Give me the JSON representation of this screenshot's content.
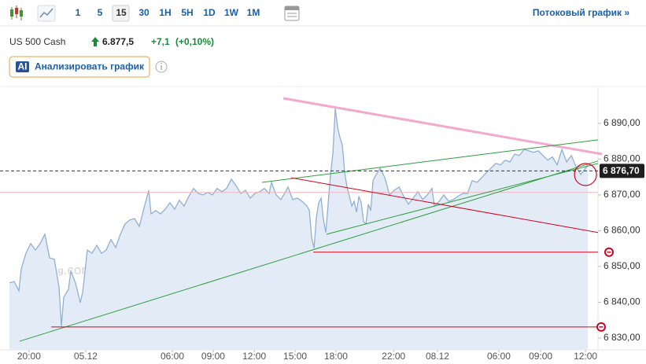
{
  "toolbar": {
    "intervals": [
      "1",
      "5",
      "15",
      "30",
      "1H",
      "5H",
      "1D",
      "1W",
      "1M"
    ],
    "selected": "15",
    "stream_link": "Потоковый график »"
  },
  "header": {
    "symbol": "US 500 Cash",
    "price": "6.877,5",
    "change": "+7,1",
    "change_pct": "(+0,10%)"
  },
  "ai_button": {
    "badge": "AI",
    "label": "Анализировать график"
  },
  "chart_data": {
    "type": "area",
    "watermark": {
      "brand": "Investing",
      "suffix": ".com"
    },
    "color": "#8fb0d3",
    "fill_color": "#e3ecf6",
    "x": [
      0,
      2,
      4,
      5,
      7,
      9,
      11,
      13,
      15,
      17,
      19,
      21,
      22,
      23,
      25,
      26,
      28,
      30,
      31,
      33,
      35,
      37,
      39,
      41,
      43,
      45,
      47,
      49,
      51,
      53,
      55,
      57,
      59,
      60,
      62,
      64,
      66,
      68,
      70,
      72,
      74,
      76,
      78,
      80,
      82,
      84,
      86,
      88,
      90,
      92,
      94,
      96,
      98,
      100,
      102,
      104,
      106,
      108,
      110,
      111,
      113,
      115,
      117,
      118,
      120,
      122,
      124,
      126,
      127,
      128,
      129,
      130,
      131,
      132,
      133,
      134,
      135,
      136,
      137,
      138,
      139,
      140,
      141,
      142,
      143,
      144,
      145,
      146,
      147,
      148,
      149,
      150,
      151,
      152,
      153,
      154,
      155,
      157,
      159,
      161,
      163,
      165,
      167,
      169,
      171,
      173,
      175,
      177,
      179,
      180,
      182,
      184,
      186,
      188,
      190,
      192,
      194,
      196,
      198,
      200,
      202,
      204,
      206,
      208,
      210,
      212,
      214,
      216,
      218,
      220,
      222,
      224,
      226,
      228,
      230,
      232,
      234,
      236,
      238,
      240,
      242,
      244,
      245
    ],
    "values": [
      6845.4,
      6845.8,
      6843.2,
      6849.3,
      6853.7,
      6856.4,
      6854.6,
      6856.4,
      6859.0,
      6852.4,
      6852.0,
      6844.3,
      6833.3,
      6841.4,
      6843.6,
      6848.7,
      6845.4,
      6839.9,
      6842.7,
      6854.6,
      6853.7,
      6855.9,
      6853.7,
      6854.6,
      6857.5,
      6855.3,
      6859.0,
      6861.9,
      6863.0,
      6863.4,
      6861.2,
      6866.3,
      6871.3,
      6864.7,
      6865.6,
      6864.7,
      6866.0,
      6867.8,
      6866.0,
      6868.5,
      6866.9,
      6869.6,
      6871.8,
      6870.4,
      6870.0,
      6870.7,
      6870.0,
      6871.8,
      6870.9,
      6871.8,
      6874.4,
      6872.6,
      6870.4,
      6871.3,
      6869.1,
      6870.4,
      6870.9,
      6871.8,
      6870.4,
      6873.5,
      6870.0,
      6868.7,
      6870.9,
      6872.2,
      6868.7,
      6869.1,
      6868.2,
      6866.9,
      6865.6,
      6858.1,
      6855.1,
      6863.8,
      6867.8,
      6869.1,
      6863.0,
      6859.5,
      6867.8,
      6875.7,
      6881.7,
      6894.2,
      6888.9,
      6886.0,
      6883.9,
      6876.2,
      6872.2,
      6869.6,
      6866.9,
      6868.2,
      6865.2,
      6869.6,
      6867.8,
      6862.5,
      6861.9,
      6867.4,
      6865.6,
      6874.0,
      6875.3,
      6877.5,
      6874.8,
      6870.0,
      6871.3,
      6872.2,
      6869.6,
      6867.4,
      6869.1,
      6870.9,
      6868.7,
      6870.0,
      6871.8,
      6866.9,
      6868.2,
      6870.0,
      6868.2,
      6868.7,
      6869.6,
      6870.4,
      6870.4,
      6874.0,
      6873.5,
      6874.8,
      6876.2,
      6877.5,
      6878.8,
      6878.4,
      6879.7,
      6879.2,
      6881.4,
      6881.0,
      6882.7,
      6882.3,
      6881.9,
      6882.3,
      6881.0,
      6879.7,
      6880.6,
      6878.4,
      6882.7,
      6879.2,
      6881.0,
      6877.9,
      6875.7,
      6877.5,
      6878.4
    ],
    "xlim": [
      0,
      249.3
    ],
    "xticks": [
      {
        "value": 8.3,
        "label": "20:00"
      },
      {
        "value": 32.3,
        "label": "05.12"
      },
      {
        "value": 69,
        "label": "06:00"
      },
      {
        "value": 86.3,
        "label": "09:00"
      },
      {
        "value": 103.7,
        "label": "12:00"
      },
      {
        "value": 121,
        "label": "15:00"
      },
      {
        "value": 138.3,
        "label": "18:00"
      },
      {
        "value": 162.7,
        "label": "22:00"
      },
      {
        "value": 181.3,
        "label": "08.12"
      },
      {
        "value": 207.3,
        "label": "06:00"
      },
      {
        "value": 225,
        "label": "09:00"
      },
      {
        "value": 244,
        "label": "12:00"
      }
    ],
    "ylim": [
      6826.7,
      6900.3
    ],
    "yticks": [
      {
        "value": 6830,
        "label": "6 830,00"
      },
      {
        "value": 6840,
        "label": "6 840,00"
      },
      {
        "value": 6850,
        "label": "6 850,00"
      },
      {
        "value": 6860,
        "label": "6 860,00"
      },
      {
        "value": 6870,
        "label": "6 870,00"
      },
      {
        "value": 6880,
        "label": "6 880,00"
      },
      {
        "value": 6890,
        "label": "6 890,00"
      }
    ],
    "price_line": {
      "value": 6876.7,
      "label": "6 876,70"
    },
    "reference_line": 6870.7,
    "reference_color": "#f4b4bc",
    "drawings": [
      {
        "color": "#f2a9cc",
        "x": [
          116,
          251
        ],
        "y": [
          6897.0,
          6881.4
        ]
      },
      {
        "color": "#2e9e3e",
        "x": [
          4.3,
          249.3
        ],
        "y": [
          6829.1,
          6879.5
        ]
      },
      {
        "color": "#2e9e3e",
        "x": [
          107,
          249.3
        ],
        "y": [
          6873.5,
          6885.4
        ]
      },
      {
        "color": "#2e9e3e",
        "x": [
          134.3,
          249.3
        ],
        "y": [
          6859.0,
          6878.8
        ]
      },
      {
        "color": "#d0021b",
        "x": [
          119.3,
          249.3
        ],
        "y": [
          6874.8,
          6859.5
        ]
      },
      {
        "color": "#d0021b",
        "x": [
          128.7,
          249.3
        ],
        "y": [
          6854.0,
          6854.0
        ],
        "end_marker": true
      },
      {
        "color": "#d0021b",
        "x": [
          17.7,
          249.3
        ],
        "y": [
          6833.1,
          6833.1
        ],
        "end_marker": true
      }
    ],
    "highlight": {
      "x": 244,
      "y": 6875.7,
      "color": "#d0021b"
    }
  }
}
